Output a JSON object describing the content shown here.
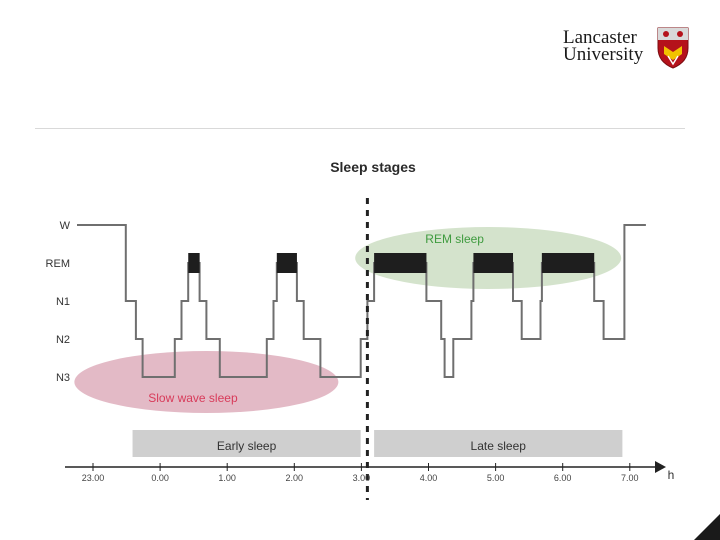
{
  "logo": {
    "line1": "Lancaster",
    "line2": "University",
    "crest_colors": [
      "#b5121b",
      "#f2c200",
      "#ffffff"
    ]
  },
  "chart_data": {
    "type": "line",
    "title": "Sleep stages",
    "xlabel": "h",
    "ylabel": "",
    "x_ticks": [
      "23.00",
      "0.00",
      "1.00",
      "2.00",
      "3.00",
      "4.00",
      "5.00",
      "6.00",
      "7.00"
    ],
    "x_range": [
      23.0,
      31.0
    ],
    "y_levels": [
      "W",
      "REM",
      "N1",
      "N2",
      "N3"
    ],
    "hypnogram": [
      {
        "t": 23.0,
        "stage": "W"
      },
      {
        "t": 23.4,
        "stage": "W"
      },
      {
        "t": 23.4,
        "stage": "N1"
      },
      {
        "t": 23.55,
        "stage": "N1"
      },
      {
        "t": 23.55,
        "stage": "N2"
      },
      {
        "t": 23.65,
        "stage": "N2"
      },
      {
        "t": 23.65,
        "stage": "N3"
      },
      {
        "t": 24.13,
        "stage": "N3"
      },
      {
        "t": 24.13,
        "stage": "N2"
      },
      {
        "t": 24.23,
        "stage": "N2"
      },
      {
        "t": 24.23,
        "stage": "N1"
      },
      {
        "t": 24.33,
        "stage": "N1"
      },
      {
        "t": 24.33,
        "stage": "REM"
      },
      {
        "t": 24.5,
        "stage": "REM"
      },
      {
        "t": 24.5,
        "stage": "N1"
      },
      {
        "t": 24.6,
        "stage": "N1"
      },
      {
        "t": 24.6,
        "stage": "N2"
      },
      {
        "t": 24.8,
        "stage": "N2"
      },
      {
        "t": 24.8,
        "stage": "N3"
      },
      {
        "t": 25.5,
        "stage": "N3"
      },
      {
        "t": 25.5,
        "stage": "N2"
      },
      {
        "t": 25.6,
        "stage": "N2"
      },
      {
        "t": 25.6,
        "stage": "N1"
      },
      {
        "t": 25.65,
        "stage": "N1"
      },
      {
        "t": 25.65,
        "stage": "REM"
      },
      {
        "t": 25.95,
        "stage": "REM"
      },
      {
        "t": 25.95,
        "stage": "N1"
      },
      {
        "t": 26.05,
        "stage": "N1"
      },
      {
        "t": 26.05,
        "stage": "N2"
      },
      {
        "t": 26.3,
        "stage": "N2"
      },
      {
        "t": 26.3,
        "stage": "N3"
      },
      {
        "t": 26.9,
        "stage": "N3"
      },
      {
        "t": 26.9,
        "stage": "N2"
      },
      {
        "t": 27.0,
        "stage": "N2"
      },
      {
        "t": 27.0,
        "stage": "N1"
      },
      {
        "t": 27.1,
        "stage": "N1"
      },
      {
        "t": 27.1,
        "stage": "REM"
      },
      {
        "t": 27.88,
        "stage": "REM"
      },
      {
        "t": 27.88,
        "stage": "N1"
      },
      {
        "t": 28.1,
        "stage": "N1"
      },
      {
        "t": 28.1,
        "stage": "N2"
      },
      {
        "t": 28.15,
        "stage": "N2"
      },
      {
        "t": 28.15,
        "stage": "N3"
      },
      {
        "t": 28.28,
        "stage": "N3"
      },
      {
        "t": 28.28,
        "stage": "N2"
      },
      {
        "t": 28.55,
        "stage": "N2"
      },
      {
        "t": 28.55,
        "stage": "N1"
      },
      {
        "t": 28.58,
        "stage": "N1"
      },
      {
        "t": 28.58,
        "stage": "REM"
      },
      {
        "t": 29.17,
        "stage": "REM"
      },
      {
        "t": 29.17,
        "stage": "N1"
      },
      {
        "t": 29.3,
        "stage": "N1"
      },
      {
        "t": 29.3,
        "stage": "N2"
      },
      {
        "t": 29.58,
        "stage": "N2"
      },
      {
        "t": 29.58,
        "stage": "N1"
      },
      {
        "t": 29.6,
        "stage": "N1"
      },
      {
        "t": 29.6,
        "stage": "REM"
      },
      {
        "t": 30.38,
        "stage": "REM"
      },
      {
        "t": 30.38,
        "stage": "N1"
      },
      {
        "t": 30.52,
        "stage": "N1"
      },
      {
        "t": 30.52,
        "stage": "N2"
      },
      {
        "t": 30.83,
        "stage": "N2"
      },
      {
        "t": 30.83,
        "stage": "W"
      },
      {
        "t": 31.15,
        "stage": "W"
      }
    ],
    "rem_blocks": [
      [
        24.33,
        24.5
      ],
      [
        25.65,
        25.95
      ],
      [
        27.1,
        27.88
      ],
      [
        28.58,
        29.17
      ],
      [
        29.6,
        30.38
      ]
    ],
    "divider_at": 27.0,
    "regions": [
      {
        "label": "Slow wave sleep",
        "color": "#d9a3b3"
      },
      {
        "label": "REM sleep",
        "color": "#c9dcbf"
      }
    ],
    "periods": [
      {
        "label": "Early sleep",
        "from": 23.5,
        "to": 26.9
      },
      {
        "label": "Late sleep",
        "from": 27.1,
        "to": 30.8
      }
    ],
    "region_label_colors": {
      "slow_wave": "#d83b5a",
      "rem": "#3f9b3f"
    },
    "line_color": "#6f6f6f",
    "rem_block_color": "#1e1e1e",
    "band_color": "#cfcfcf"
  }
}
